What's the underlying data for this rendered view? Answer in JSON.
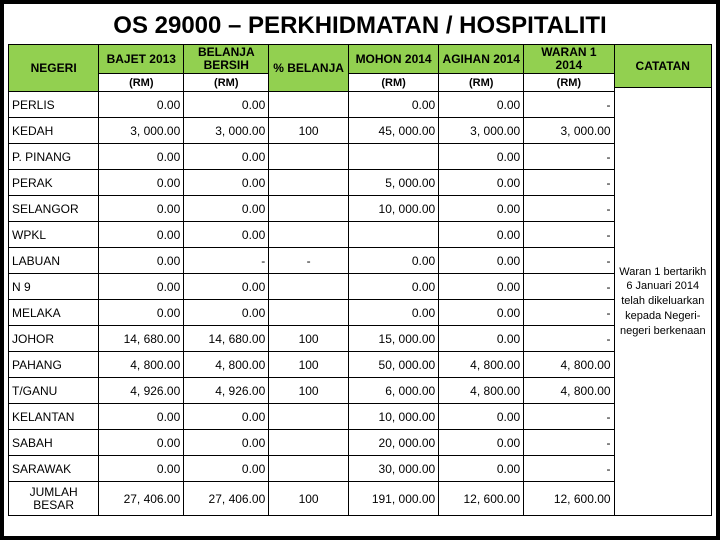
{
  "title": "OS 29000 – PERKHIDMATAN / HOSPITALITI",
  "headers": {
    "negeri": "NEGERI",
    "bajet": "BAJET 2013",
    "belanja": "BELANJA BERSIH",
    "persen": "% BELANJA",
    "mohon": "MOHON 2014",
    "agihan": "AGIHAN 2014",
    "waran": "WARAN 1 2014",
    "catatan": "CATATAN",
    "unit": "(RM)"
  },
  "rows": [
    {
      "negeri": "PERLIS",
      "bajet": "0.00",
      "belanja": "0.00",
      "persen": "",
      "mohon": "0.00",
      "agihan": "0.00",
      "waran": "-"
    },
    {
      "negeri": "KEDAH",
      "bajet": "3, 000.00",
      "belanja": "3, 000.00",
      "persen": "100",
      "mohon": "45, 000.00",
      "agihan": "3, 000.00",
      "waran": "3, 000.00"
    },
    {
      "negeri": "P. PINANG",
      "bajet": "0.00",
      "belanja": "0.00",
      "persen": "",
      "mohon": "",
      "agihan": "0.00",
      "waran": "-"
    },
    {
      "negeri": "PERAK",
      "bajet": "0.00",
      "belanja": "0.00",
      "persen": "",
      "mohon": "5, 000.00",
      "agihan": "0.00",
      "waran": "-"
    },
    {
      "negeri": "SELANGOR",
      "bajet": "0.00",
      "belanja": "0.00",
      "persen": "",
      "mohon": "10, 000.00",
      "agihan": "0.00",
      "waran": "-"
    },
    {
      "negeri": "WPKL",
      "bajet": "0.00",
      "belanja": "0.00",
      "persen": "",
      "mohon": "",
      "agihan": "0.00",
      "waran": "-"
    },
    {
      "negeri": "LABUAN",
      "bajet": "0.00",
      "belanja": "-",
      "persen": "-",
      "mohon": "0.00",
      "agihan": "0.00",
      "waran": "-"
    },
    {
      "negeri": "N 9",
      "bajet": "0.00",
      "belanja": "0.00",
      "persen": "",
      "mohon": "0.00",
      "agihan": "0.00",
      "waran": "-"
    },
    {
      "negeri": "MELAKA",
      "bajet": "0.00",
      "belanja": "0.00",
      "persen": "",
      "mohon": "0.00",
      "agihan": "0.00",
      "waran": "-"
    },
    {
      "negeri": "JOHOR",
      "bajet": "14, 680.00",
      "belanja": "14, 680.00",
      "persen": "100",
      "mohon": "15, 000.00",
      "agihan": "0.00",
      "waran": "-"
    },
    {
      "negeri": "PAHANG",
      "bajet": "4, 800.00",
      "belanja": "4, 800.00",
      "persen": "100",
      "mohon": "50, 000.00",
      "agihan": "4, 800.00",
      "waran": "4, 800.00"
    },
    {
      "negeri": "T/GANU",
      "bajet": "4, 926.00",
      "belanja": "4, 926.00",
      "persen": "100",
      "mohon": "6, 000.00",
      "agihan": "4, 800.00",
      "waran": "4, 800.00"
    },
    {
      "negeri": "KELANTAN",
      "bajet": "0.00",
      "belanja": "0.00",
      "persen": "",
      "mohon": "10, 000.00",
      "agihan": "0.00",
      "waran": "-"
    },
    {
      "negeri": "SABAH",
      "bajet": "0.00",
      "belanja": "0.00",
      "persen": "",
      "mohon": "20, 000.00",
      "agihan": "0.00",
      "waran": "-"
    },
    {
      "negeri": "SARAWAK",
      "bajet": "0.00",
      "belanja": "0.00",
      "persen": "",
      "mohon": "30, 000.00",
      "agihan": "0.00",
      "waran": "-"
    }
  ],
  "total": {
    "label": "JUMLAH BESAR",
    "bajet": "27, 406.00",
    "belanja": "27, 406.00",
    "persen": "100",
    "mohon": "191, 000.00",
    "agihan": "12, 600.00",
    "waran": "12, 600.00"
  },
  "catatan_text": "Waran 1 bertarikh 6 Januari 2014 telah dikeluarkan kepada Negeri-negeri berkenaan",
  "colors": {
    "header_bg": "#92d050",
    "border": "#000000"
  },
  "col_widths": {
    "negeri": "85px",
    "bajet": "80px",
    "belanja": "80px",
    "persen": "75px",
    "mohon": "85px",
    "agihan": "80px",
    "waran": "85px"
  }
}
